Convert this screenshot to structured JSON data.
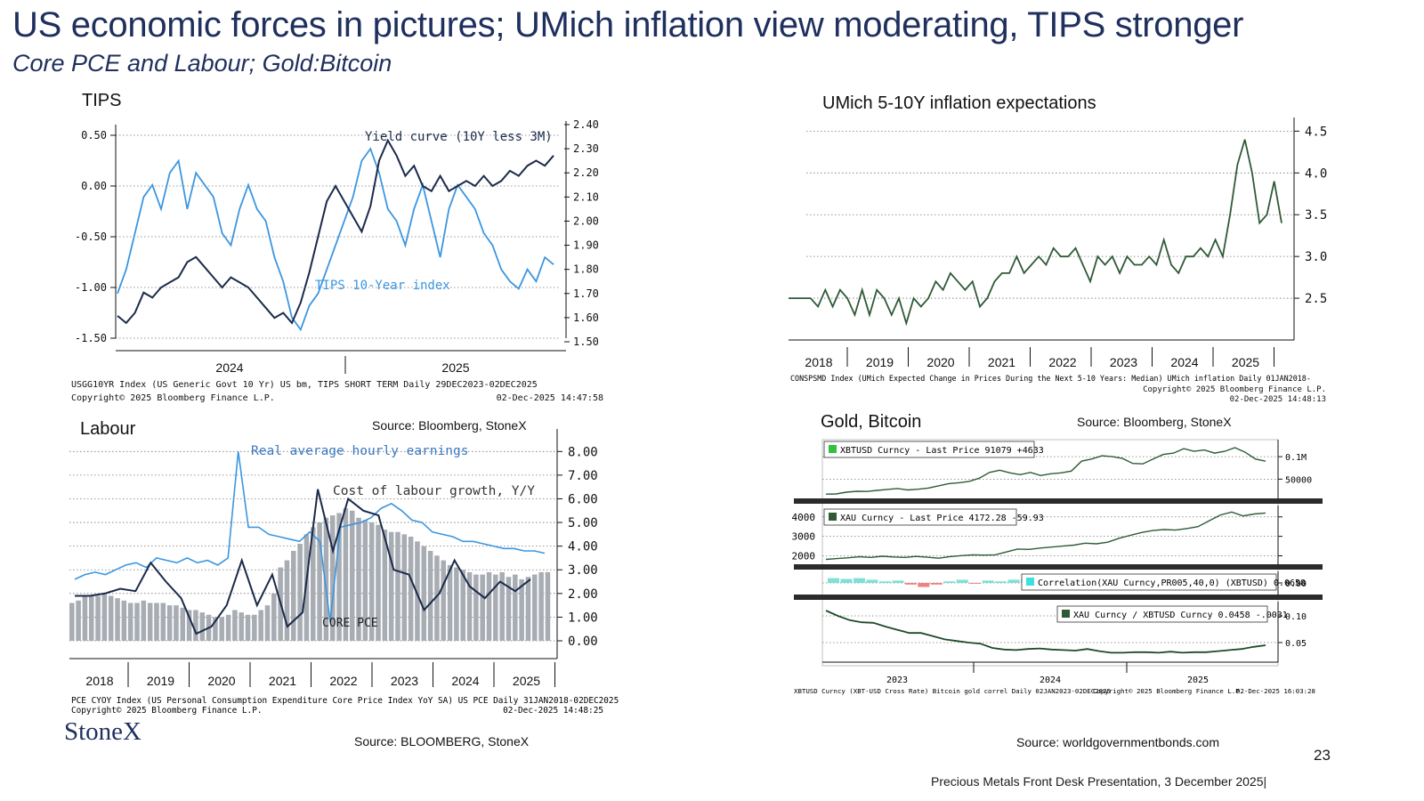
{
  "header": {
    "title": "US  economic forces in pictures; UMich inflation view moderating, TIPS stronger",
    "subtitle": "Core PCE and Labour; Gold:Bitcoin"
  },
  "footer": {
    "logo": "StoneX",
    "page_number": "23",
    "presentation": "Precious Metals Front Desk Presentation, 3 December 2025|",
    "source_right": "Source: worldgovernmentbonds.com"
  },
  "colors": {
    "navy": "#1b2a4a",
    "lightblue": "#3b96e0",
    "green": "#2f5a36",
    "bars": "#a8acb3",
    "brand": "#1f2f5e"
  },
  "chart_data": [
    {
      "id": "tips",
      "type": "line",
      "title": "TIPS",
      "years": [
        "2024",
        "2025"
      ],
      "left_ticks": [
        "0.50",
        "0.00",
        "-0.50",
        "-1.00",
        "-1.50"
      ],
      "left_ylim": [
        -1.5,
        0.5
      ],
      "right_ticks": [
        "2.40",
        "2.30",
        "2.20",
        "2.10",
        "2.00",
        "1.90",
        "1.80",
        "1.70",
        "1.60",
        "1.50"
      ],
      "right_ylim": [
        1.5,
        2.4
      ],
      "series": [
        {
          "name": "Yield curve (10Y less 3M)",
          "axis": "left",
          "color": "#1b2a4a",
          "values": [
            -1.28,
            -1.35,
            -1.25,
            -1.05,
            -1.1,
            -1.0,
            -0.95,
            -0.9,
            -0.75,
            -0.7,
            -0.8,
            -0.9,
            -1.0,
            -0.9,
            -0.95,
            -1.0,
            -1.1,
            -1.2,
            -1.3,
            -1.25,
            -1.35,
            -1.15,
            -0.85,
            -0.5,
            -0.15,
            0.0,
            -0.15,
            -0.3,
            -0.45,
            -0.2,
            0.25,
            0.45,
            0.3,
            0.1,
            0.2,
            0.0,
            -0.05,
            0.1,
            -0.05,
            0.0,
            0.05,
            0.0,
            0.1,
            0.0,
            0.05,
            0.15,
            0.1,
            0.2,
            0.25,
            0.2,
            0.3
          ]
        },
        {
          "name": "TIPS 10-Year index",
          "axis": "right",
          "color": "#3b96e0",
          "values": [
            1.7,
            1.8,
            1.95,
            2.1,
            2.15,
            2.05,
            2.2,
            2.25,
            2.05,
            2.2,
            2.15,
            2.1,
            1.95,
            1.9,
            2.05,
            2.15,
            2.05,
            2.0,
            1.85,
            1.75,
            1.6,
            1.55,
            1.65,
            1.7,
            1.8,
            1.9,
            2.0,
            2.1,
            2.25,
            2.3,
            2.2,
            2.05,
            2.0,
            1.9,
            2.05,
            2.15,
            2.0,
            1.85,
            2.05,
            2.15,
            2.1,
            2.05,
            1.95,
            1.9,
            1.8,
            1.75,
            1.72,
            1.8,
            1.75,
            1.85,
            1.82
          ]
        }
      ],
      "note1": "USGG10YR Index (US Generic Govt 10 Yr) US bm, TIPS SHORT TERM Daily 29DEC2023-02DEC2025",
      "note2a": "Copyright© 2025 Bloomberg Finance L.P.",
      "note2b": "02-Dec-2025 14:47:58",
      "source": "Source: Bloomberg, StoneX"
    },
    {
      "id": "umich",
      "type": "line",
      "title": "UMich 5-10Y inflation expectations",
      "years": [
        "2018",
        "2019",
        "2020",
        "2021",
        "2022",
        "2023",
        "2024",
        "2025"
      ],
      "ticks": [
        "4.5",
        "4.0",
        "3.5",
        "3.0",
        "2.5"
      ],
      "ylim": [
        2.0,
        4.6
      ],
      "series": [
        {
          "name": "",
          "color": "#2f5a36",
          "values": [
            2.5,
            2.5,
            2.5,
            2.5,
            2.4,
            2.6,
            2.4,
            2.6,
            2.5,
            2.3,
            2.6,
            2.3,
            2.6,
            2.5,
            2.3,
            2.5,
            2.2,
            2.5,
            2.4,
            2.5,
            2.7,
            2.6,
            2.8,
            2.7,
            2.6,
            2.7,
            2.4,
            2.5,
            2.7,
            2.8,
            2.8,
            3.0,
            2.8,
            2.9,
            3.0,
            2.9,
            3.1,
            3.0,
            3.0,
            3.1,
            2.9,
            2.7,
            3.0,
            2.9,
            3.0,
            2.8,
            3.0,
            2.9,
            2.9,
            3.0,
            2.9,
            3.2,
            2.9,
            2.8,
            3.0,
            3.0,
            3.1,
            3.0,
            3.2,
            3.0,
            3.5,
            4.1,
            4.4,
            4.0,
            3.4,
            3.5,
            3.9,
            3.4
          ]
        }
      ],
      "note1": "CONSPSMD Index (UMich Expected Change in Prices During the Next 5-10 Years: Median) UMich inflation Daily 01JAN2018-",
      "note2": "Copyright© 2025 Bloomberg Finance L.P.",
      "note3": "02-Dec-2025 14:48:13",
      "source": "Source: Bloomberg, StoneX"
    },
    {
      "id": "labour",
      "type": "bar+line",
      "title": "Labour",
      "years": [
        "2018",
        "2019",
        "2020",
        "2021",
        "2022",
        "2023",
        "2024",
        "2025"
      ],
      "ticks": [
        "8.00",
        "7.00",
        "6.00",
        "5.00",
        "4.00",
        "3.00",
        "2.00",
        "1.00",
        "0.00"
      ],
      "ylim": [
        0,
        8.5
      ],
      "bars": {
        "name": "CORE PCE",
        "color": "#a8acb3",
        "values": [
          1.6,
          1.7,
          1.9,
          1.9,
          1.9,
          2.0,
          1.9,
          1.8,
          1.7,
          1.6,
          1.6,
          1.7,
          1.6,
          1.6,
          1.6,
          1.5,
          1.5,
          1.4,
          1.3,
          1.3,
          1.2,
          1.1,
          1.0,
          1.0,
          1.1,
          1.3,
          1.2,
          1.1,
          1.1,
          1.3,
          1.5,
          2.0,
          3.1,
          3.4,
          3.8,
          4.1,
          4.5,
          4.8,
          5.0,
          5.2,
          5.3,
          5.4,
          5.6,
          5.5,
          5.2,
          5.1,
          5.0,
          4.9,
          4.7,
          4.6,
          4.6,
          4.5,
          4.4,
          4.2,
          4.0,
          3.8,
          3.6,
          3.4,
          3.2,
          3.1,
          3.0,
          2.9,
          2.8,
          2.8,
          2.9,
          2.8,
          2.9,
          2.7,
          2.8,
          2.6,
          2.7,
          2.8,
          2.9,
          2.9
        ]
      },
      "series": [
        {
          "name": "Real average hourly earnings",
          "color": "#3b96e0",
          "values": [
            2.6,
            2.8,
            2.9,
            2.8,
            3.0,
            3.2,
            3.3,
            3.1,
            3.5,
            3.4,
            3.3,
            3.5,
            3.3,
            3.4,
            3.2,
            3.5,
            8.0,
            4.8,
            4.8,
            4.5,
            4.4,
            4.3,
            4.2,
            4.6,
            4.2,
            0.8,
            4.8,
            4.9,
            5.0,
            5.2,
            5.6,
            5.8,
            5.5,
            5.1,
            5.0,
            4.6,
            4.5,
            4.4,
            4.2,
            4.2,
            4.1,
            4.0,
            3.9,
            3.9,
            3.8,
            3.8,
            3.7
          ]
        },
        {
          "name": "Cost of labour growth, Y/Y",
          "color": "#1b2a4a",
          "values": [
            1.9,
            1.9,
            2.0,
            2.2,
            2.1,
            3.3,
            2.5,
            1.8,
            0.3,
            0.6,
            1.5,
            3.4,
            1.5,
            2.8,
            0.6,
            1.2,
            6.4,
            3.8,
            6.0,
            5.5,
            5.3,
            3.0,
            2.8,
            1.3,
            2.0,
            3.4,
            2.3,
            1.8,
            2.5,
            2.1,
            2.6
          ]
        }
      ],
      "annotations": [
        "Real average hourly earnings",
        "Cost of labour growth, Y/Y",
        "CORE PCE"
      ],
      "note1": "PCE CYOY Index (US Personal Consumption Expenditure Core Price Index YoY SA) US PCE Daily 31JAN2018-02DEC2025",
      "note2a": "Copyright© 2025 Bloomberg Finance L.P.",
      "note2b": "02-Dec-2025 14:48:25",
      "source": "Source: BLOOMBERG, StoneX"
    },
    {
      "id": "gold_bitcoin",
      "type": "multi-panel line",
      "title": "Gold, Bitcoin",
      "years": [
        "2023",
        "2024",
        "2025"
      ],
      "panels": [
        {
          "legend": "XBTUSD Curncy - Last Price 91079  +4633",
          "ticks": [
            "0.1M",
            "50000"
          ],
          "ylim": [
            15000,
            130000
          ],
          "color": "#2f5a36",
          "values": [
            16500,
            17000,
            21000,
            23000,
            22500,
            25000,
            27000,
            29000,
            26000,
            27500,
            30000,
            35000,
            40000,
            42000,
            45000,
            52000,
            65000,
            70000,
            64000,
            60000,
            65000,
            58000,
            62000,
            64000,
            68000,
            90000,
            95000,
            102000,
            100000,
            96000,
            85000,
            84000,
            95000,
            105000,
            108000,
            118000,
            112000,
            115000,
            108000,
            112000,
            120000,
            110000,
            95000,
            90000
          ]
        },
        {
          "legend": "XAU Curncy - Last Price 4172.28   -59.93",
          "ticks": [
            "4000",
            "3000",
            "2000"
          ],
          "ylim": [
            1750,
            4400
          ],
          "color": "#2f5a36",
          "values": [
            1820,
            1860,
            1900,
            1950,
            1920,
            1980,
            1940,
            1920,
            1970,
            1930,
            1880,
            1960,
            2010,
            2050,
            2040,
            2050,
            2200,
            2350,
            2330,
            2400,
            2450,
            2500,
            2550,
            2650,
            2620,
            2700,
            2900,
            3050,
            3200,
            3300,
            3350,
            3320,
            3400,
            3500,
            3800,
            4100,
            4250,
            4050,
            4150,
            4200
          ]
        },
        {
          "legend": "Correlation(XAU Curncy,PR005,40,0) (XBTUSD) 0.0658",
          "ticks": [
            "0.00"
          ],
          "ylim": [
            -0.5,
            0.5
          ],
          "color": "#3de0e0",
          "values": [
            0.3,
            0.25,
            0.3,
            0.2,
            0.1,
            0.15,
            -0.1,
            -0.25,
            -0.1,
            0.1,
            0.2,
            -0.05,
            0.15,
            0.1,
            0.2,
            0.25,
            0.05
          ]
        },
        {
          "legend": "XAU Curncy / XBTUSD Curncy 0.0458   -.0031",
          "ticks": [
            "0.10",
            "0.05"
          ],
          "ylim": [
            0.02,
            0.12
          ],
          "color": "#1e4a28",
          "values": [
            0.11,
            0.1,
            0.092,
            0.088,
            0.087,
            0.08,
            0.074,
            0.068,
            0.068,
            0.062,
            0.056,
            0.053,
            0.05,
            0.048,
            0.04,
            0.037,
            0.036,
            0.038,
            0.039,
            0.037,
            0.036,
            0.035,
            0.038,
            0.034,
            0.031,
            0.031,
            0.032,
            0.032,
            0.031,
            0.033,
            0.031,
            0.032,
            0.032,
            0.034,
            0.036,
            0.038,
            0.042,
            0.045
          ]
        }
      ],
      "note_left": "XBTUSD Curncy (XBT-USD Cross Rate) Bitcoin gold correl Daily 02JAN2023-02DEC2025",
      "note_mid": "Copyright© 2025 Bloomberg Finance L.P.",
      "note_right": "02-Dec-2025 16:03:28",
      "source": "Source: Bloomberg, StoneX"
    }
  ]
}
